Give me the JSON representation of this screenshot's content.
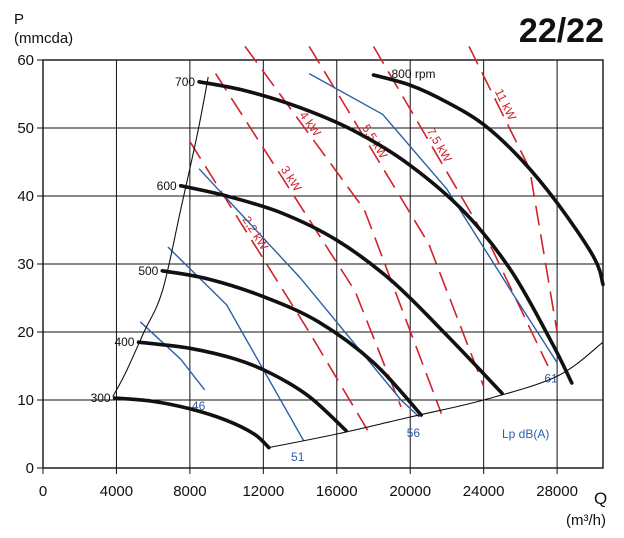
{
  "chart_data": {
    "type": "line",
    "title": "22/22",
    "ylabel": "P",
    "yunit": "(mmcda)",
    "xlabel": "Q",
    "xunit": "(m³/h)",
    "xlim": [
      0,
      30500
    ],
    "ylim": [
      0,
      60
    ],
    "xticks": [
      "0",
      "4000",
      "8000",
      "12000",
      "16000",
      "20000",
      "24000",
      "28000"
    ],
    "yticks": [
      "0",
      "10",
      "20",
      "30",
      "40",
      "50",
      "60"
    ],
    "grid": true,
    "colors": {
      "rpm": "#111111",
      "power": "#d0222a",
      "noise": "#2b5ea8"
    },
    "rpm_curves": [
      {
        "label": "300",
        "points": [
          [
            3900,
            10.3
          ],
          [
            6000,
            9.8
          ],
          [
            8000,
            8.7
          ],
          [
            10000,
            7.0
          ],
          [
            11500,
            5.0
          ],
          [
            12300,
            3.0
          ]
        ]
      },
      {
        "label": "400",
        "points": [
          [
            5200,
            18.5
          ],
          [
            8000,
            17.6
          ],
          [
            10500,
            16.0
          ],
          [
            12500,
            13.8
          ],
          [
            14500,
            10.5
          ],
          [
            16500,
            5.5
          ]
        ]
      },
      {
        "label": "500",
        "points": [
          [
            6500,
            29.0
          ],
          [
            9000,
            27.8
          ],
          [
            12000,
            25.2
          ],
          [
            15000,
            21.5
          ],
          [
            18000,
            15.5
          ],
          [
            20600,
            7.8
          ]
        ]
      },
      {
        "label": "600",
        "points": [
          [
            7500,
            41.5
          ],
          [
            10000,
            40.0
          ],
          [
            13000,
            37.5
          ],
          [
            16000,
            33.5
          ],
          [
            19000,
            27.5
          ],
          [
            22000,
            19.5
          ],
          [
            25000,
            11.0
          ]
        ]
      },
      {
        "label": "700",
        "points": [
          [
            8500,
            56.8
          ],
          [
            11000,
            55.5
          ],
          [
            14000,
            53.0
          ],
          [
            17000,
            49.5
          ],
          [
            20000,
            44.5
          ],
          [
            23000,
            37.5
          ],
          [
            25500,
            29.0
          ],
          [
            27700,
            18.5
          ],
          [
            28800,
            12.5
          ]
        ]
      },
      {
        "label": "800 rpm",
        "points": [
          [
            18000,
            57.8
          ],
          [
            20000,
            56.3
          ],
          [
            22000,
            53.8
          ],
          [
            24000,
            50.5
          ],
          [
            26000,
            45.5
          ],
          [
            28000,
            39.0
          ],
          [
            30000,
            31.0
          ],
          [
            30500,
            27.0
          ]
        ]
      }
    ],
    "system_curve": [
      [
        3800,
        10.5
      ],
      [
        4500,
        14.0
      ],
      [
        5500,
        20.0
      ],
      [
        6500,
        26.0
      ],
      [
        7500,
        38.0
      ],
      [
        8400,
        49.0
      ],
      [
        9000,
        57.5
      ]
    ],
    "lower_boundary": [
      [
        12300,
        3.0
      ],
      [
        16000,
        5.0
      ],
      [
        20000,
        7.5
      ],
      [
        24000,
        10.0
      ],
      [
        28000,
        13.5
      ],
      [
        30500,
        18.5
      ]
    ],
    "power_lines": [
      {
        "label": "2,2 kW",
        "points": [
          [
            8000,
            48
          ],
          [
            14500,
            20
          ],
          [
            17800,
            5
          ]
        ]
      },
      {
        "label": "3 kW",
        "points": [
          [
            9400,
            58
          ],
          [
            17000,
            26
          ],
          [
            19500,
            9
          ]
        ]
      },
      {
        "label": "4 kW",
        "points": [
          [
            11000,
            62
          ],
          [
            17500,
            38
          ],
          [
            21700,
            8
          ]
        ]
      },
      {
        "label": "5,5 kW",
        "points": [
          [
            14500,
            62
          ],
          [
            21000,
            33
          ],
          [
            24000,
            12
          ]
        ]
      },
      {
        "label": "7,5 kW",
        "points": [
          [
            18000,
            62
          ],
          [
            24500,
            32
          ],
          [
            27500,
            15
          ]
        ]
      },
      {
        "label": "11 kW",
        "points": [
          [
            23200,
            62
          ],
          [
            26500,
            44
          ],
          [
            28000,
            20
          ]
        ]
      }
    ],
    "noise_lines": [
      {
        "label": "46",
        "points": [
          [
            5300,
            21.5
          ],
          [
            7500,
            16.0
          ],
          [
            8800,
            11.5
          ]
        ]
      },
      {
        "label": "51",
        "points": [
          [
            6800,
            32.5
          ],
          [
            10000,
            24.0
          ],
          [
            14200,
            4.0
          ]
        ]
      },
      {
        "label": "56",
        "points": [
          [
            8500,
            44.0
          ],
          [
            14000,
            28.0
          ],
          [
            19500,
            10.0
          ],
          [
            20500,
            7.5
          ]
        ]
      },
      {
        "label": "61",
        "points": [
          [
            14500,
            58.0
          ],
          [
            18500,
            52.0
          ],
          [
            22000,
            41.0
          ],
          [
            25500,
            26.0
          ],
          [
            28000,
            15.5
          ]
        ]
      }
    ],
    "legend_text": "Lp dB(A)"
  }
}
